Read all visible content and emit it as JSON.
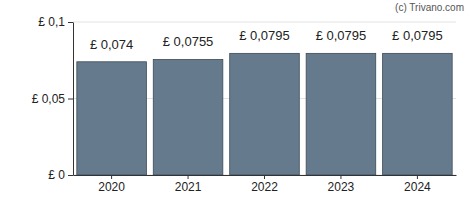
{
  "chart_data": {
    "type": "bar",
    "annotations": [
      "(c) Trivano.com"
    ],
    "categories": [
      "2020",
      "2021",
      "2022",
      "2023",
      "2024"
    ],
    "values": [
      0.074,
      0.0755,
      0.0795,
      0.0795,
      0.0795
    ],
    "value_labels": [
      "£ 0,074",
      "£ 0,0755",
      "£ 0,0795",
      "£ 0,0795",
      "£ 0,0795"
    ],
    "data_labels": true,
    "color": "#657b8d",
    "ylim": [
      0,
      0.1
    ],
    "yticks": [
      {
        "value": 0,
        "label": "£ 0"
      },
      {
        "value": 0.05,
        "label": "£ 0,05"
      },
      {
        "value": 0.1,
        "label": "£ 0,1"
      }
    ],
    "grid": true
  }
}
